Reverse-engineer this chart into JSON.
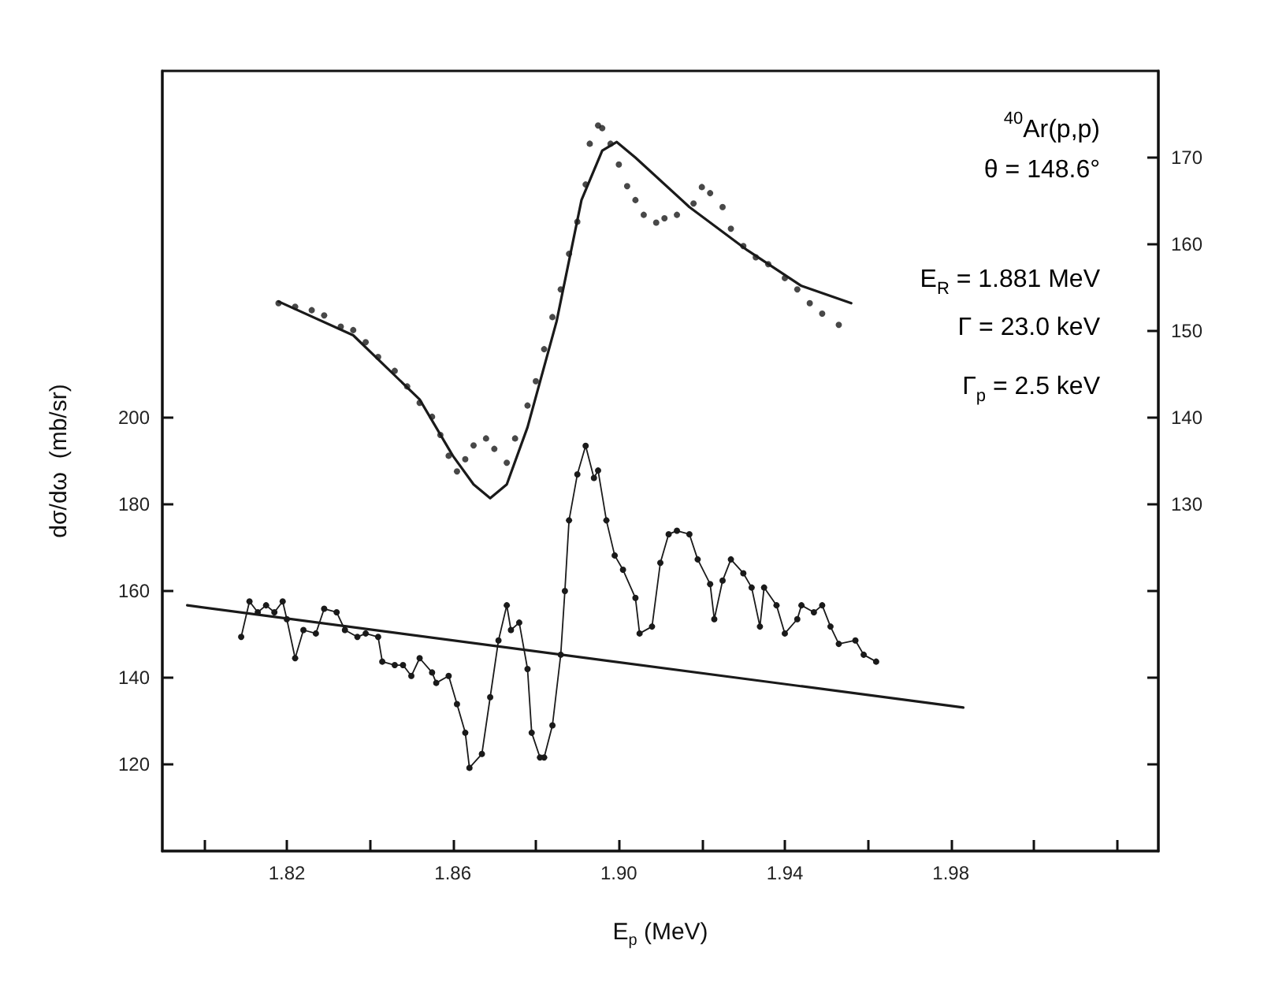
{
  "chart_data": {
    "type": "line",
    "xlabel": "E$_{p}$ (MeV)",
    "ylabel": "dσ/dω  (mb/sr)",
    "xlim": [
      1.79,
      2.03
    ],
    "xticks": [
      {
        "value": 1.8,
        "label": null
      },
      1.82,
      {
        "value": 1.84,
        "label": null
      },
      1.86,
      {
        "value": 1.88,
        "label": null
      },
      {
        "value": 1.9,
        "label": "1.90"
      },
      {
        "value": 1.92,
        "label": null
      },
      1.94,
      {
        "value": 1.96,
        "label": null
      },
      1.98,
      {
        "value": 2.0,
        "label": null
      },
      {
        "value": 2.02,
        "label": null
      }
    ],
    "ylim": [
      100,
      280
    ],
    "yticks": [
      120,
      140,
      160,
      180,
      200
    ],
    "y2lim": [
      90,
      180
    ],
    "y2ticks": [
      {
        "value": 100,
        "label": null
      },
      {
        "value": 110,
        "label": null
      },
      {
        "value": 120,
        "label": null
      },
      130,
      140,
      150,
      160,
      170
    ],
    "grid": false,
    "line_style": "solid",
    "annotations": [
      "$^{40}$Ar(p,p)",
      "θ = 148.6°",
      "E$_{R}$ = 1.881 MeV",
      "Γ = 23.0 keV",
      "Γ$_{p}$ = 2.5 keV"
    ],
    "series": [
      {
        "type": "scatter",
        "axis": "y2",
        "color": "#1a1a1a",
        "marker": "circle",
        "x": [
          1.818,
          1.822,
          1.826,
          1.829,
          1.833,
          1.836,
          1.839,
          1.842,
          1.846,
          1.849,
          1.852,
          1.855,
          1.857,
          1.859,
          1.861,
          1.863,
          1.865,
          1.868,
          1.87,
          1.873,
          1.875,
          1.878,
          1.88,
          1.882,
          1.884,
          1.886,
          1.888,
          1.89,
          1.892,
          1.893,
          1.895,
          1.896,
          1.898,
          1.9,
          1.902,
          1.904,
          1.906,
          1.909,
          1.911,
          1.914,
          1.918,
          1.92,
          1.922,
          1.925,
          1.927,
          1.93,
          1.933,
          1.936,
          1.94,
          1.943,
          1.946,
          1.949,
          1.953
        ],
        "values": [
          153.2,
          152.8,
          152.4,
          151.8,
          150.5,
          150.1,
          148.7,
          147.0,
          145.4,
          143.6,
          141.7,
          140.1,
          138.0,
          135.6,
          133.8,
          135.2,
          136.8,
          137.6,
          136.4,
          134.8,
          137.6,
          141.4,
          144.2,
          147.9,
          151.6,
          154.8,
          158.9,
          162.6,
          166.9,
          171.6,
          173.7,
          173.4,
          171.6,
          169.2,
          166.7,
          165.1,
          163.4,
          162.5,
          163.0,
          163.4,
          164.7,
          166.6,
          165.9,
          164.3,
          161.8,
          159.8,
          158.5,
          157.7,
          156.1,
          154.8,
          153.2,
          152.0,
          150.7
        ]
      },
      {
        "axis": "y2",
        "color": "#1a1a1a",
        "marker": "none",
        "x": [
          1.818,
          1.836,
          1.852,
          1.86,
          1.865,
          1.869,
          1.873,
          1.878,
          1.885,
          1.891,
          1.896,
          1.8995,
          1.904,
          1.917,
          1.931,
          1.944,
          1.956
        ],
        "values": [
          153.4,
          149.5,
          142.1,
          135.6,
          132.3,
          130.7,
          132.3,
          138.9,
          151.1,
          165.1,
          170.8,
          171.8,
          170.0,
          164.3,
          159.3,
          155.2,
          153.2
        ]
      },
      {
        "color": "#1a1a1a",
        "marker": "circle",
        "x": [
          1.809,
          1.811,
          1.813,
          1.815,
          1.817,
          1.819,
          1.82,
          1.822,
          1.824,
          1.827,
          1.829,
          1.832,
          1.834,
          1.837,
          1.839,
          1.842,
          1.843,
          1.846,
          1.848,
          1.85,
          1.852,
          1.855,
          1.856,
          1.859,
          1.861,
          1.863,
          1.864,
          1.867,
          1.869,
          1.871,
          1.873,
          1.874,
          1.876,
          1.878,
          1.879,
          1.881,
          1.882,
          1.884,
          1.886,
          1.887,
          1.888,
          1.89,
          1.892,
          1.894,
          1.895,
          1.897,
          1.899,
          1.901,
          1.904,
          1.905,
          1.908,
          1.91,
          1.912,
          1.914,
          1.917,
          1.919,
          1.922,
          1.923,
          1.925,
          1.927,
          1.93,
          1.932,
          1.934,
          1.935,
          1.938,
          1.94,
          1.943,
          1.944,
          1.947,
          1.949,
          1.951,
          1.953,
          1.957,
          1.959,
          1.962
        ],
        "values": [
          149.4,
          157.6,
          155.1,
          156.7,
          155.1,
          157.6,
          153.5,
          144.5,
          151.0,
          150.2,
          155.9,
          155.1,
          151.0,
          149.4,
          150.2,
          149.4,
          143.7,
          142.9,
          142.9,
          140.4,
          144.5,
          141.2,
          138.8,
          140.4,
          133.9,
          127.3,
          119.2,
          122.4,
          135.5,
          148.6,
          156.7,
          151.0,
          152.7,
          142.0,
          127.3,
          121.6,
          121.6,
          129.0,
          145.3,
          160.0,
          176.3,
          186.9,
          193.5,
          186.1,
          187.8,
          176.3,
          168.2,
          164.9,
          158.4,
          150.2,
          151.8,
          166.5,
          173.1,
          173.9,
          173.1,
          167.3,
          161.6,
          153.5,
          162.4,
          167.3,
          164.1,
          160.8,
          151.8,
          160.8,
          156.7,
          150.2,
          153.5,
          156.7,
          155.1,
          156.7,
          151.8,
          147.8,
          148.6,
          145.3,
          143.7
        ]
      },
      {
        "color": "#1a1a1a",
        "marker": "none",
        "x": [
          1.796,
          1.983
        ],
        "values": [
          156.7,
          133.1
        ]
      }
    ]
  }
}
